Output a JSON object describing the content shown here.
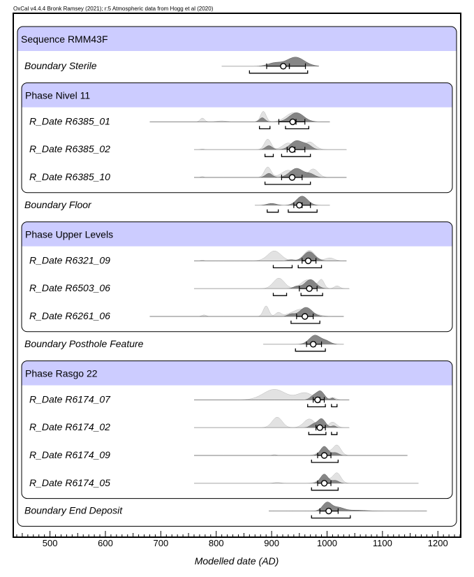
{
  "header": "OxCal v4.4.4 Bronk Ramsey (2021); r:5 Atmospheric data from Hogg et al (2020)",
  "chart_data": {
    "type": "oxcal-multiplot",
    "xlabel": "Modelled date (AD)",
    "xlim": [
      435,
      1240
    ],
    "xticks": [
      500,
      600,
      700,
      800,
      900,
      1000,
      1100,
      1200
    ],
    "minor_tick_step": 10,
    "colors": {
      "group_header": "#ccccff",
      "posterior": "#7a7a7a",
      "prior": "#e2e2e2"
    },
    "groups": [
      {
        "title": "Sequence RMM43F",
        "first": 0,
        "last": 17
      },
      {
        "title": "Phase Nivel 11",
        "first": 2,
        "last": 5
      },
      {
        "title": "Phase Upper Levels",
        "first": 7,
        "last": 10
      },
      {
        "title": "Phase Rasgo 22",
        "first": 12,
        "last": 16
      }
    ],
    "rows": [
      {
        "kind": "header"
      },
      {
        "label": "Boundary Sterile",
        "indent": 0,
        "range": [
          810,
          985
        ],
        "mean": 921,
        "median": 932,
        "post": [
          [
            905,
            0.35,
            12
          ],
          [
            943,
            1.0,
            16
          ]
        ],
        "hpd": [
          [
            860,
            965
          ]
        ],
        "sd1": [
          891,
          961
        ]
      },
      {
        "kind": "header"
      },
      {
        "label": "R_Date R6385_01",
        "indent": 1,
        "range": [
          680,
          1005
        ],
        "mean": 938,
        "median": 944,
        "post": [
          [
            945,
            1.0,
            13
          ],
          [
            883,
            0.45,
            5
          ]
        ],
        "prior": [
          [
            775,
            0.3,
            4
          ],
          [
            810,
            0.08,
            8
          ],
          [
            885,
            0.85,
            5
          ],
          [
            940,
            0.75,
            14
          ]
        ],
        "hpd": [
          [
            878,
            897
          ],
          [
            925,
            967
          ]
        ],
        "sd1": [
          913,
          960
        ]
      },
      {
        "label": "R_Date R6385_02",
        "indent": 1,
        "range": [
          760,
          1035
        ],
        "mean": 937,
        "median": 942,
        "post": [
          [
            945,
            1.0,
            11
          ],
          [
            895,
            0.45,
            6
          ],
          [
            965,
            0.45,
            8
          ]
        ],
        "prior": [
          [
            775,
            0.06,
            3
          ],
          [
            893,
            0.95,
            6
          ],
          [
            930,
            0.6,
            10
          ],
          [
            968,
            0.7,
            10
          ]
        ],
        "hpd": [
          [
            888,
            903
          ],
          [
            918,
            970
          ]
        ],
        "sd1": [
          928,
          960
        ]
      },
      {
        "label": "R_Date R6385_10",
        "indent": 1,
        "range": [
          760,
          1035
        ],
        "mean": 937,
        "median": 940,
        "post": [
          [
            945,
            1.0,
            12
          ],
          [
            895,
            0.45,
            6
          ],
          [
            970,
            0.35,
            8
          ]
        ],
        "prior": [
          [
            775,
            0.06,
            3
          ],
          [
            893,
            0.8,
            6
          ],
          [
            930,
            0.55,
            12
          ],
          [
            975,
            0.65,
            9
          ]
        ],
        "hpd": [
          [
            888,
            970
          ]
        ],
        "sd1": [
          918,
          955
        ]
      },
      {
        "label": "Boundary Floor",
        "indent": 0,
        "range": [
          870,
          1005
        ],
        "mean": 950,
        "median": 955,
        "post": [
          [
            900,
            0.2,
            8
          ],
          [
            955,
            1.0,
            10
          ]
        ],
        "hpd": [
          [
            892,
            912
          ],
          [
            930,
            982
          ]
        ],
        "sd1": [
          940,
          970
        ]
      },
      {
        "kind": "header"
      },
      {
        "label": "R_Date R6321_09",
        "indent": 1,
        "range": [
          760,
          1035
        ],
        "mean": 966,
        "median": 968,
        "post": [
          [
            968,
            1.0,
            10
          ],
          [
            935,
            0.12,
            6
          ]
        ],
        "prior": [
          [
            775,
            0.06,
            3
          ],
          [
            905,
            0.85,
            12
          ],
          [
            968,
            0.9,
            10
          ],
          [
            1005,
            0.25,
            8
          ]
        ],
        "hpd": [
          [
            903,
            937
          ],
          [
            948,
            990
          ]
        ],
        "sd1": [
          955,
          980
        ]
      },
      {
        "label": "R_Date R6503_06",
        "indent": 1,
        "range": [
          760,
          1040
        ],
        "mean": 968,
        "median": 970,
        "post": [
          [
            970,
            1.0,
            10
          ],
          [
            945,
            0.25,
            6
          ]
        ],
        "prior": [
          [
            913,
            0.95,
            10
          ],
          [
            965,
            0.8,
            12
          ],
          [
            990,
            0.75,
            5
          ],
          [
            1018,
            0.25,
            5
          ]
        ],
        "hpd": [
          [
            903,
            927
          ],
          [
            953,
            992
          ]
        ],
        "sd1": [
          950,
          982
        ]
      },
      {
        "label": "R_Date R6261_06",
        "indent": 1,
        "range": [
          680,
          1030
        ],
        "mean": 960,
        "median": 963,
        "post": [
          [
            962,
            1.0,
            11
          ],
          [
            935,
            0.25,
            6
          ]
        ],
        "prior": [
          [
            778,
            0.12,
            4
          ],
          [
            890,
            0.85,
            5
          ],
          [
            912,
            0.3,
            5
          ],
          [
            955,
            0.6,
            18
          ]
        ],
        "hpd": [
          [
            935,
            987
          ]
        ],
        "sd1": [
          945,
          975
        ]
      },
      {
        "label": "Boundary Posthole Feature",
        "indent": 0,
        "range": [
          885,
          1030
        ],
        "mean": 975,
        "median": 978,
        "post": [
          [
            978,
            1.0,
            10
          ],
          [
            998,
            0.35,
            8
          ]
        ],
        "hpd": [
          [
            943,
            997
          ]
        ],
        "sd1": [
          963,
          990
        ]
      },
      {
        "kind": "header"
      },
      {
        "label": "R_Date R6174_07",
        "indent": 1,
        "range": [
          760,
          1040
        ],
        "mean": 983,
        "median": 987,
        "post": [
          [
            988,
            1.0,
            7
          ],
          [
            975,
            0.4,
            6
          ],
          [
            1010,
            0.2,
            3
          ]
        ],
        "prior": [
          [
            905,
            0.9,
            20
          ],
          [
            960,
            0.6,
            14
          ],
          [
            1010,
            0.2,
            6
          ]
        ],
        "hpd": [
          [
            965,
            997
          ],
          [
            1008,
            1018
          ]
        ],
        "sd1": [
          975,
          995
        ]
      },
      {
        "label": "R_Date R6174_02",
        "indent": 1,
        "range": [
          760,
          1040
        ],
        "mean": 987,
        "median": 990,
        "post": [
          [
            990,
            1.0,
            7
          ],
          [
            975,
            0.35,
            6
          ],
          [
            1012,
            0.2,
            4
          ]
        ],
        "prior": [
          [
            910,
            0.85,
            9
          ],
          [
            968,
            0.7,
            10
          ],
          [
            1010,
            0.45,
            7
          ]
        ],
        "hpd": [
          [
            967,
            998
          ],
          [
            1008,
            1018
          ]
        ],
        "sd1": [
          980,
          997
        ]
      },
      {
        "label": "R_Date R6174_09",
        "indent": 1,
        "range": [
          760,
          1145
        ],
        "mean": 995,
        "median": 997,
        "post": [
          [
            995,
            1.0,
            7
          ],
          [
            1015,
            0.3,
            6
          ]
        ],
        "prior": [
          [
            905,
            0.06,
            4
          ],
          [
            995,
            0.45,
            10
          ],
          [
            1018,
            0.8,
            7
          ]
        ],
        "hpd": [
          [
            972,
            1020
          ]
        ],
        "sd1": [
          983,
          1007
        ]
      },
      {
        "label": "R_Date R6174_05",
        "indent": 1,
        "range": [
          760,
          1165
        ],
        "mean": 995,
        "median": 996,
        "post": [
          [
            995,
            1.0,
            7
          ],
          [
            1015,
            0.3,
            6
          ]
        ],
        "prior": [
          [
            910,
            0.06,
            6
          ],
          [
            995,
            0.4,
            10
          ],
          [
            1018,
            0.75,
            7
          ]
        ],
        "hpd": [
          [
            972,
            1020
          ]
        ],
        "sd1": [
          983,
          1007
        ]
      },
      {
        "label": "Boundary End Deposit",
        "indent": 0,
        "range": [
          895,
          1180
        ],
        "mean": 1003,
        "median": 1005,
        "post": [
          [
            1000,
            1.0,
            8
          ],
          [
            1020,
            0.4,
            10
          ],
          [
            1050,
            0.1,
            20
          ]
        ],
        "hpd": [
          [
            972,
            1042
          ]
        ],
        "sd1": [
          987,
          1020
        ]
      }
    ]
  }
}
